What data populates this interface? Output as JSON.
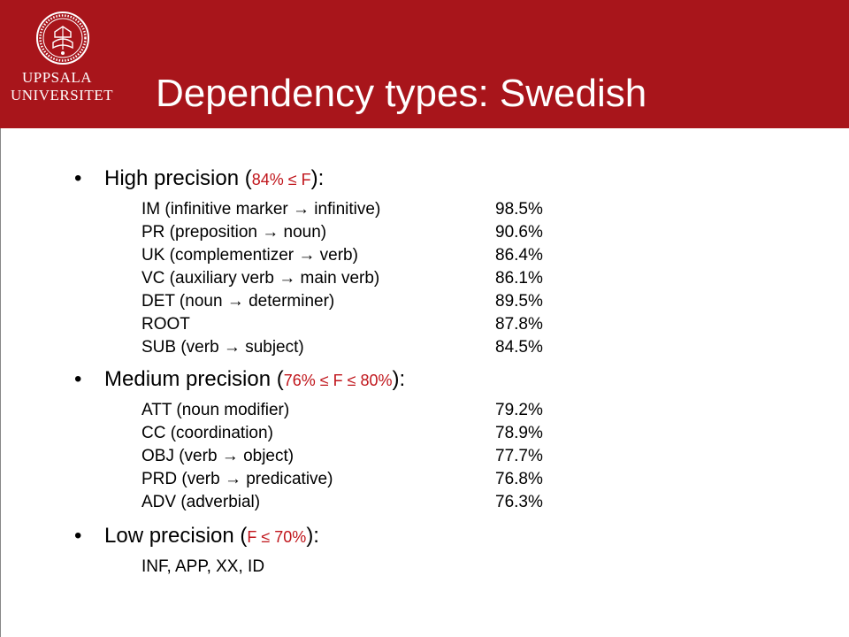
{
  "header": {
    "logo_line1": "UPPSALA",
    "logo_line2": "UNIVERSITET",
    "title": "Dependency types: Swedish"
  },
  "colors": {
    "header_bg": "#a8151b",
    "threshold_text": "#c0151b"
  },
  "sections": [
    {
      "label_before": "High precision (",
      "threshold": "84% ≤ F",
      "label_after": "):",
      "rows": [
        {
          "label": "IM (infinitive marker → infinitive)",
          "value": "98.5%"
        },
        {
          "label": "PR (preposition → noun)",
          "value": "90.6%"
        },
        {
          "label": "UK (complementizer → verb)",
          "value": "86.4%"
        },
        {
          "label": "VC (auxiliary verb → main verb)",
          "value": "86.1%"
        },
        {
          "label": "DET (noun → determiner)",
          "value": "89.5%"
        },
        {
          "label": "ROOT",
          "value": "87.8%"
        },
        {
          "label": "SUB (verb → subject)",
          "value": "84.5%"
        }
      ]
    },
    {
      "label_before": "Medium precision (",
      "threshold": "76% ≤ F ≤ 80%",
      "label_after": "):",
      "rows": [
        {
          "label": "ATT (noun modifier)",
          "value": "79.2%"
        },
        {
          "label": "CC (coordination)",
          "value": "78.9%"
        },
        {
          "label": "OBJ (verb → object)",
          "value": "77.7%"
        },
        {
          "label": "PRD (verb → predicative)",
          "value": "76.8%"
        },
        {
          "label": "ADV (adverbial)",
          "value": "76.3%"
        }
      ]
    },
    {
      "label_before": "Low precision (",
      "threshold": "F ≤ 70%",
      "label_after": "):",
      "rows": [
        {
          "label": "INF, APP, XX, ID",
          "value": ""
        }
      ]
    }
  ]
}
